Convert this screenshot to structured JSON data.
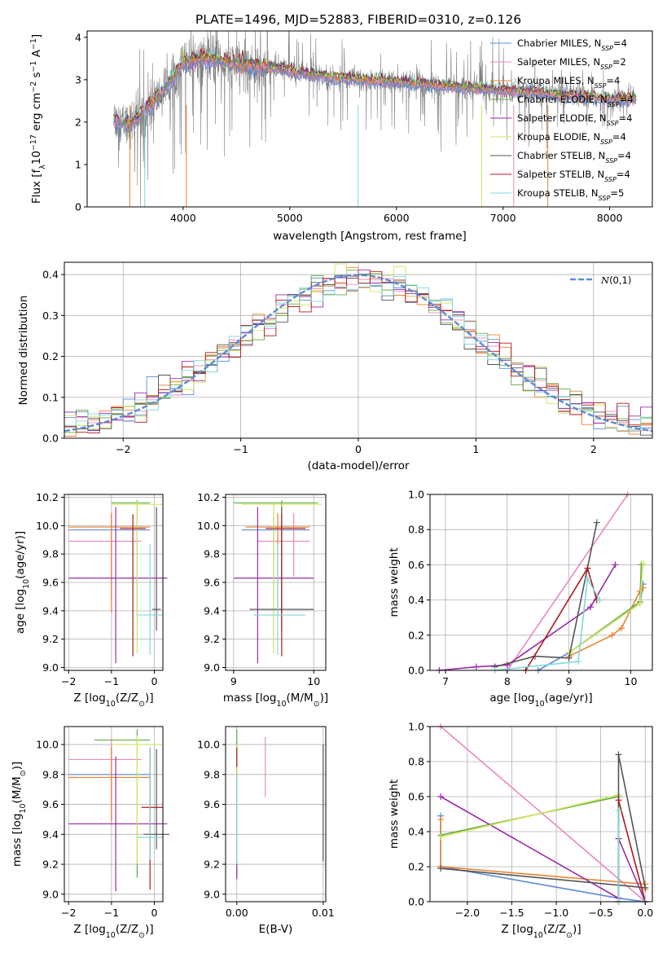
{
  "figure_title": "PLATE=1496, MJD=52883, FIBERID=0310, z=0.126",
  "legend_entries": [
    {
      "name": "Chabrier MILES, N$_{SSP}$=4",
      "label_main": "Chabrier MILES, N",
      "label_sub": "SSP",
      "label_end": "=4",
      "color": "#5b8bd6"
    },
    {
      "name": "Salpeter MILES, N$_{SSP}$=2",
      "label_main": "Salpeter MILES, N",
      "label_sub": "SSP",
      "label_end": "=2",
      "color": "#ea88c0"
    },
    {
      "name": "Kroupa MILES, N$_{SSP}$=4",
      "label_main": "Kroupa MILES, N",
      "label_sub": "SSP",
      "label_end": "=4",
      "color": "#e8822e"
    },
    {
      "name": "Chabrier ELODIE, N$_{SSP}$=4",
      "label_main": "Chabrier ELODIE, N",
      "label_sub": "SSP",
      "label_end": "=4",
      "color": "#66aa44"
    },
    {
      "name": "Salpeter ELODIE, N$_{SSP}$=4",
      "label_main": "Salpeter ELODIE, N",
      "label_sub": "SSP",
      "label_end": "=4",
      "color": "#9a2aaa"
    },
    {
      "name": "Kroupa ELODIE, N$_{SSP}$=4",
      "label_main": "Kroupa ELODIE, N",
      "label_sub": "SSP",
      "label_end": "=4",
      "color": "#cfe660"
    },
    {
      "name": "Chabrier STELIB, N$_{SSP}$=4",
      "label_main": "Chabrier STELIB, N",
      "label_sub": "SSP",
      "label_end": "=4",
      "color": "#555555"
    },
    {
      "name": "Salpeter STELIB, N$_{SSP}$=4",
      "label_main": "Salpeter STELIB, N",
      "label_sub": "SSP",
      "label_end": "=4",
      "color": "#b0181c"
    },
    {
      "name": "Kroupa STELIB, N$_{SSP}$=5",
      "label_main": "Kroupa STELIB, N",
      "label_sub": "SSP",
      "label_end": "=5",
      "color": "#7fd8dc"
    }
  ],
  "chart_data": [
    {
      "id": "spectrum",
      "type": "line",
      "xlabel": "wavelength [Angstrom, rest frame]",
      "ylabel": "Flux [f$_\\lambda$10$^{-17}$ erg cm$^{-2}$ s$^{-1}$ A$^{-1}$]",
      "ylabel_parts": [
        "Flux [f",
        "λ",
        "10",
        "−17",
        " erg cm",
        "−2",
        " s",
        "−1",
        " A",
        "−1",
        "]"
      ],
      "xlim": [
        3100,
        8400
      ],
      "ylim": [
        0,
        4.15
      ],
      "xticks": [
        4000,
        5000,
        6000,
        7000,
        8000
      ],
      "yticks": [
        0,
        1,
        2,
        3,
        4
      ],
      "data_color": "#808080",
      "continuum": {
        "x": [
          3350,
          3500,
          3700,
          3900,
          4000,
          4200,
          4500,
          4800,
          5000,
          5400,
          6000,
          6500,
          7000,
          7300,
          7500,
          8000,
          8250
        ],
        "y": [
          2.05,
          1.95,
          2.4,
          3.0,
          3.4,
          3.5,
          3.35,
          3.3,
          3.2,
          3.05,
          2.95,
          2.85,
          2.75,
          2.7,
          2.65,
          2.55,
          2.55
        ]
      }
    },
    {
      "id": "residuals",
      "type": "histogram",
      "xlabel": "(data-model)/error",
      "ylabel": "Normed distribution",
      "xlim": [
        -2.5,
        2.5
      ],
      "ylim": [
        0,
        0.43
      ],
      "xticks": [
        -2,
        -1,
        0,
        1,
        2
      ],
      "yticks": [
        0.0,
        0.1,
        0.2,
        0.3,
        0.4
      ],
      "reference": {
        "name": "N(0,1)",
        "mean": 0,
        "sigma": 1,
        "color": "#5b8bd6"
      },
      "bin_edges_range": [
        -2.5,
        2.5
      ],
      "bin_count": 50
    },
    {
      "id": "age_vs_Z",
      "type": "errorbar",
      "xlabel": "Z [log$_{10}$(Z/Z$_\\odot$)]",
      "ylabel": "age  [log$_{10}$(age/yr)]",
      "xlim": [
        -2.1,
        0.2
      ],
      "ylim": [
        8.98,
        10.22
      ],
      "xticks": [
        -2,
        -1,
        0
      ],
      "yticks": [
        9.0,
        9.2,
        9.4,
        9.6,
        9.8,
        10.0,
        10.2
      ],
      "points": [
        {
          "series": 0,
          "x": -1.0,
          "xerr": [
            1.0,
            0.9
          ],
          "y": 9.97,
          "yerr": [
            0.5,
            0.1
          ]
        },
        {
          "series": 1,
          "x": -1.0,
          "xerr": [
            1.0,
            0.7
          ],
          "y": 9.89,
          "yerr": [
            0.25,
            0.2
          ]
        },
        {
          "series": 2,
          "x": -1.0,
          "xerr": [
            1.0,
            0.9
          ],
          "y": 9.99,
          "yerr": [
            0.6,
            0.1
          ]
        },
        {
          "series": 3,
          "x": -0.4,
          "xerr": [
            0.6,
            0.3
          ],
          "y": 10.16,
          "yerr": [
            0.8,
            0.02
          ]
        },
        {
          "series": 4,
          "x": -0.9,
          "xerr": [
            1.1,
            1.2
          ],
          "y": 9.63,
          "yerr": [
            0.6,
            0.5
          ]
        },
        {
          "series": 5,
          "x": -0.4,
          "xerr": [
            0.6,
            0.6
          ],
          "y": 10.15,
          "yerr": [
            1.05,
            0.02
          ]
        },
        {
          "series": 6,
          "x": 0.05,
          "xerr": [
            0.1,
            0.1
          ],
          "y": 9.41,
          "yerr": [
            0.15,
            0.72
          ]
        },
        {
          "series": 7,
          "x": -0.5,
          "xerr": [
            0.3,
            0.3
          ],
          "y": 9.98,
          "yerr": [
            0.9,
            0.1
          ]
        },
        {
          "series": 8,
          "x": -0.1,
          "xerr": [
            0.3,
            0.3
          ],
          "y": 9.37,
          "yerr": [
            0.28,
            0.5
          ]
        }
      ]
    },
    {
      "id": "age_vs_mass",
      "type": "errorbar",
      "xlabel": "mass [log$_{10}$(M/M$_\\odot$)]",
      "ylabel": "",
      "xlim": [
        8.9,
        10.15
      ],
      "ylim": [
        8.98,
        10.22
      ],
      "xticks": [
        9,
        10
      ],
      "yticks": [
        9.0,
        9.2,
        9.4,
        9.6,
        9.8,
        10.0,
        10.2
      ],
      "points": [
        {
          "series": 0,
          "x": 9.5,
          "xerr": [
            0.4,
            0.45
          ],
          "y": 9.97,
          "yerr": [
            0.5,
            0.1
          ]
        },
        {
          "series": 1,
          "x": 9.75,
          "xerr": [
            0.45,
            0.2
          ],
          "y": 9.89,
          "yerr": [
            0.25,
            0.2
          ]
        },
        {
          "series": 2,
          "x": 9.55,
          "xerr": [
            0.4,
            0.4
          ],
          "y": 9.99,
          "yerr": [
            0.6,
            0.1
          ]
        },
        {
          "series": 3,
          "x": 9.6,
          "xerr": [
            0.6,
            0.45
          ],
          "y": 10.16,
          "yerr": [
            0.8,
            0.02
          ]
        },
        {
          "series": 4,
          "x": 9.3,
          "xerr": [
            0.3,
            0.7
          ],
          "y": 9.63,
          "yerr": [
            0.6,
            0.5
          ]
        },
        {
          "series": 5,
          "x": 9.5,
          "xerr": [
            0.4,
            0.6
          ],
          "y": 10.15,
          "yerr": [
            1.05,
            0.02
          ]
        },
        {
          "series": 6,
          "x": 9.6,
          "xerr": [
            0.4,
            0.4
          ],
          "y": 9.41,
          "yerr": [
            0.15,
            0.72
          ]
        },
        {
          "series": 7,
          "x": 9.6,
          "xerr": [
            0.2,
            0.3
          ],
          "y": 9.98,
          "yerr": [
            0.9,
            0.1
          ]
        },
        {
          "series": 8,
          "x": 9.55,
          "xerr": [
            0.3,
            0.35
          ],
          "y": 9.37,
          "yerr": [
            0.28,
            0.5
          ]
        }
      ]
    },
    {
      "id": "massweight_vs_age",
      "type": "line",
      "xlabel": "age  [log$_{10}$(age/yr)]",
      "ylabel": "mass weight",
      "xlim": [
        6.75,
        10.35
      ],
      "ylim": [
        0,
        1.0
      ],
      "xticks": [
        7,
        8,
        9,
        10
      ],
      "yticks": [
        0.0,
        0.2,
        0.4,
        0.6,
        0.8,
        1.0
      ],
      "series": [
        {
          "series": 0,
          "x": [
            8.5,
            9.0,
            10.15,
            10.2
          ],
          "y": [
            0.0,
            0.1,
            0.38,
            0.49
          ]
        },
        {
          "series": 1,
          "x": [
            8.0,
            9.95
          ],
          "y": [
            0.0,
            1.0
          ]
        },
        {
          "series": 2,
          "x": [
            9.0,
            9.7,
            9.85,
            10.15,
            10.2
          ],
          "y": [
            0.08,
            0.2,
            0.24,
            0.45,
            0.47
          ]
        },
        {
          "series": 3,
          "x": [
            9.0,
            10.15,
            10.17
          ],
          "y": [
            0.1,
            0.39,
            0.6
          ]
        },
        {
          "series": 4,
          "x": [
            6.9,
            7.5,
            8.0,
            9.35,
            9.75
          ],
          "y": [
            0.0,
            0.02,
            0.03,
            0.36,
            0.6
          ]
        },
        {
          "series": 5,
          "x": [
            9.0,
            10.15,
            10.2
          ],
          "y": [
            0.1,
            0.38,
            0.61
          ]
        },
        {
          "series": 6,
          "x": [
            7.8,
            8.45,
            9.0,
            9.45
          ],
          "y": [
            0.02,
            0.08,
            0.07,
            0.84
          ]
        },
        {
          "series": 7,
          "x": [
            8.3,
            9.3,
            9.45
          ],
          "y": [
            0.0,
            0.58,
            0.4
          ]
        },
        {
          "series": 8,
          "x": [
            7.8,
            9.15,
            9.3,
            9.5
          ],
          "y": [
            0.0,
            0.05,
            0.52,
            0.4
          ]
        }
      ]
    },
    {
      "id": "mass_vs_Z",
      "type": "errorbar",
      "xlabel": "Z [log$_{10}$(Z/Z$_\\odot$)]",
      "ylabel": "mass [log$_{10}$(M/M$_\\odot$)]",
      "xlim": [
        -2.1,
        0.2
      ],
      "ylim": [
        8.95,
        10.12
      ],
      "xticks": [
        -2,
        -1,
        0
      ],
      "yticks": [
        9.0,
        9.2,
        9.4,
        9.6,
        9.8,
        10.0
      ],
      "points": [
        {
          "series": 0,
          "x": -1.0,
          "xerr": [
            1.0,
            0.9
          ],
          "y": 9.8,
          "yerr": [
            0.3,
            0.2
          ]
        },
        {
          "series": 1,
          "x": -1.0,
          "xerr": [
            1.0,
            0.7
          ],
          "y": 9.9,
          "yerr": [
            0.3,
            0.14
          ]
        },
        {
          "series": 2,
          "x": -1.0,
          "xerr": [
            1.0,
            0.9
          ],
          "y": 9.78,
          "yerr": [
            0.3,
            0.2
          ]
        },
        {
          "series": 3,
          "x": -0.4,
          "xerr": [
            1.0,
            0.3
          ],
          "y": 10.03,
          "yerr": [
            0.92,
            0.07
          ]
        },
        {
          "series": 4,
          "x": -0.9,
          "xerr": [
            1.1,
            1.2
          ],
          "y": 9.47,
          "yerr": [
            0.45,
            0.45
          ]
        },
        {
          "series": 5,
          "x": -0.4,
          "xerr": [
            0.6,
            0.6
          ],
          "y": 10.0,
          "yerr": [
            0.8,
            0.06
          ]
        },
        {
          "series": 6,
          "x": 0.05,
          "xerr": [
            0.3,
            0.3
          ],
          "y": 9.4,
          "yerr": [
            0.1,
            0.57
          ]
        },
        {
          "series": 7,
          "x": -0.1,
          "xerr": [
            0.2,
            0.3
          ],
          "y": 9.58,
          "yerr": [
            0.55,
            0.4
          ]
        },
        {
          "series": 8,
          "x": -0.1,
          "xerr": [
            0.3,
            0.3
          ],
          "y": 9.38,
          "yerr": [
            0.15,
            0.6
          ]
        }
      ]
    },
    {
      "id": "mass_vs_ebv",
      "type": "errorbar",
      "xlabel": "E(B-V)",
      "ylabel": "",
      "xlim": [
        -0.0013,
        0.0103
      ],
      "ylim": [
        8.95,
        10.12
      ],
      "xticks": [
        0.0,
        0.01
      ],
      "xticklabels": [
        "0.00",
        "0.01"
      ],
      "yticks": [
        9.0,
        9.2,
        9.4,
        9.6,
        9.8,
        10.0
      ],
      "points": [
        {
          "series": 0,
          "x": 0.0,
          "xerr": [
            0,
            0
          ],
          "y": 9.8,
          "yerr": [
            0.3,
            0.2
          ]
        },
        {
          "series": 1,
          "x": 0.0033,
          "xerr": [
            0,
            0
          ],
          "y": 9.85,
          "yerr": [
            0.2,
            0.2
          ]
        },
        {
          "series": 2,
          "x": 0.0,
          "xerr": [
            0,
            0
          ],
          "y": 9.78,
          "yerr": [
            0.3,
            0.2
          ]
        },
        {
          "series": 3,
          "x": 0.0,
          "xerr": [
            0,
            0
          ],
          "y": 10.03,
          "yerr": [
            0.9,
            0.07
          ]
        },
        {
          "series": 4,
          "x": 0.0,
          "xerr": [
            0,
            0
          ],
          "y": 9.5,
          "yerr": [
            0.4,
            0.3
          ]
        },
        {
          "series": 5,
          "x": 0.0,
          "xerr": [
            0,
            0
          ],
          "y": 9.8,
          "yerr": [
            0.6,
            0.2
          ]
        },
        {
          "series": 6,
          "x": 0.01,
          "xerr": [
            0,
            0
          ],
          "y": 9.6,
          "yerr": [
            0.38,
            0.4
          ]
        },
        {
          "series": 7,
          "x": 0.0,
          "xerr": [
            0,
            0
          ],
          "y": 9.93,
          "yerr": [
            0.08,
            0.05
          ]
        },
        {
          "series": 8,
          "x": 0.0,
          "xerr": [
            0,
            0
          ],
          "y": 9.5,
          "yerr": [
            0.3,
            0.3
          ]
        }
      ]
    },
    {
      "id": "massweight_vs_Z",
      "type": "line",
      "xlabel": "Z [log$_{10}$(Z/Z$_\\odot$)]",
      "ylabel": "mass weight",
      "xlim": [
        -2.42,
        0.08
      ],
      "ylim": [
        0,
        1.0
      ],
      "xticks": [
        -2.0,
        -1.5,
        -1.0,
        -0.5,
        0.0
      ],
      "yticks": [
        0.0,
        0.2,
        0.4,
        0.6,
        0.8,
        1.0
      ],
      "series": [
        {
          "series": 0,
          "x": [
            -2.3,
            -2.3,
            -0.3,
            0.0
          ],
          "y": [
            0.49,
            0.2,
            0.02,
            0.0
          ]
        },
        {
          "series": 1,
          "x": [
            -2.3,
            0.0
          ],
          "y": [
            1.0,
            0.0
          ]
        },
        {
          "series": 2,
          "x": [
            -2.3,
            -2.3,
            0.0,
            0.0
          ],
          "y": [
            0.47,
            0.2,
            0.1,
            0.07
          ]
        },
        {
          "series": 3,
          "x": [
            -2.3,
            -0.3,
            -0.3
          ],
          "y": [
            0.38,
            0.6,
            0.0
          ]
        },
        {
          "series": 4,
          "x": [
            -2.3,
            -0.3,
            -0.3,
            0.0
          ],
          "y": [
            0.6,
            0.02,
            0.36,
            0.0
          ]
        },
        {
          "series": 5,
          "x": [
            -2.3,
            -0.3,
            -0.3
          ],
          "y": [
            0.37,
            0.61,
            0.0
          ]
        },
        {
          "series": 6,
          "x": [
            -2.3,
            0.0,
            -0.3,
            -0.3
          ],
          "y": [
            0.19,
            0.08,
            0.84,
            0.0
          ]
        },
        {
          "series": 7,
          "x": [
            -0.3,
            0.0
          ],
          "y": [
            0.58,
            0.0
          ]
        },
        {
          "series": 8,
          "x": [
            -0.3,
            -0.3,
            0.0
          ],
          "y": [
            0.52,
            0.0,
            0.0
          ]
        }
      ]
    }
  ]
}
